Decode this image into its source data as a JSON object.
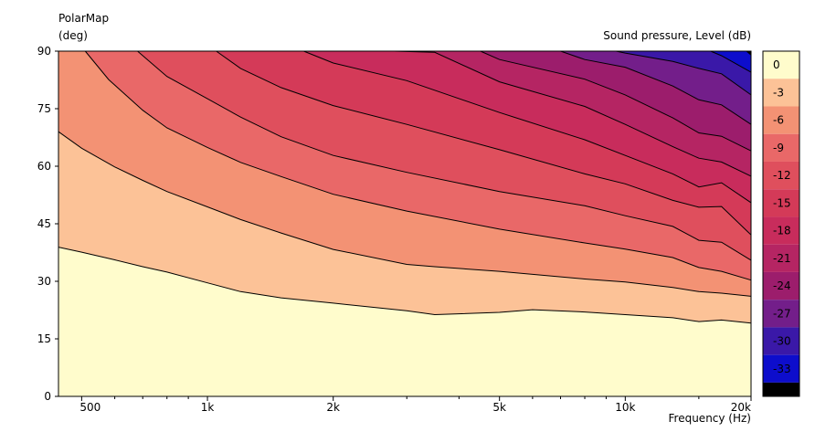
{
  "chart_data": {
    "type": "heatmap",
    "title": "PolarMap",
    "ylabel": "(deg)",
    "xlabel": "Frequency  (Hz)",
    "colorbar_label": "Sound pressure, Level  (dB)",
    "x_scale": "log",
    "xlim": [
      440,
      20000
    ],
    "ylim": [
      0,
      90
    ],
    "x_ticks": [
      {
        "value": 500,
        "label": "500"
      },
      {
        "value": 1000,
        "label": "1k"
      },
      {
        "value": 2000,
        "label": "2k"
      },
      {
        "value": 5000,
        "label": "5k"
      },
      {
        "value": 10000,
        "label": "10k"
      },
      {
        "value": 20000,
        "label": "20k"
      }
    ],
    "y_ticks": [
      {
        "value": 0,
        "label": "0"
      },
      {
        "value": 15,
        "label": "15"
      },
      {
        "value": 30,
        "label": "30"
      },
      {
        "value": 45,
        "label": "45"
      },
      {
        "value": 60,
        "label": "60"
      },
      {
        "value": 75,
        "label": "75"
      },
      {
        "value": 90,
        "label": "90"
      }
    ],
    "levels": [
      {
        "label": "0",
        "color": "#fffccc"
      },
      {
        "label": "-3",
        "color": "#fcc297"
      },
      {
        "label": "-6",
        "color": "#f39274"
      },
      {
        "label": "-9",
        "color": "#e96868"
      },
      {
        "label": "-12",
        "color": "#df4f5d"
      },
      {
        "label": "-15",
        "color": "#d43a58"
      },
      {
        "label": "-18",
        "color": "#c82c5c"
      },
      {
        "label": "-21",
        "color": "#b52563"
      },
      {
        "label": "-24",
        "color": "#9c1d6c"
      },
      {
        "label": "-27",
        "color": "#731e8a"
      },
      {
        "label": "-30",
        "color": "#3a18a8"
      },
      {
        "label": "-33",
        "color": "#0d0dcc"
      },
      {
        "label": "",
        "color": "#000000"
      }
    ],
    "contours": [
      {
        "level": "-3",
        "points": [
          [
            440,
            38.9
          ],
          [
            500,
            37.6
          ],
          [
            600,
            35.6
          ],
          [
            700,
            33.8
          ],
          [
            800,
            32.4
          ],
          [
            1000,
            29.6
          ],
          [
            1200,
            27.3
          ],
          [
            1500,
            25.7
          ],
          [
            2000,
            24.3
          ],
          [
            3000,
            22.3
          ],
          [
            3500,
            21.3
          ],
          [
            5000,
            21.9
          ],
          [
            6000,
            22.6
          ],
          [
            8000,
            22.0
          ],
          [
            10000,
            21.3
          ],
          [
            13000,
            20.5
          ],
          [
            15000,
            19.5
          ],
          [
            17000,
            19.9
          ],
          [
            20000,
            19.1
          ]
        ]
      },
      {
        "level": "-6",
        "points": [
          [
            440,
            69.0
          ],
          [
            500,
            64.7
          ],
          [
            600,
            59.8
          ],
          [
            700,
            56.3
          ],
          [
            800,
            53.4
          ],
          [
            1000,
            49.4
          ],
          [
            1200,
            46.1
          ],
          [
            1500,
            42.6
          ],
          [
            2000,
            38.3
          ],
          [
            3000,
            34.4
          ],
          [
            3500,
            33.8
          ],
          [
            5000,
            32.6
          ],
          [
            8000,
            30.6
          ],
          [
            10000,
            29.8
          ],
          [
            13000,
            28.4
          ],
          [
            15000,
            27.3
          ],
          [
            17000,
            26.9
          ],
          [
            20000,
            26.1
          ]
        ]
      },
      {
        "level": "-9",
        "points": [
          [
            510,
            90
          ],
          [
            580,
            82.6
          ],
          [
            700,
            74.6
          ],
          [
            800,
            70.0
          ],
          [
            1000,
            64.9
          ],
          [
            1200,
            61.0
          ],
          [
            1500,
            57.3
          ],
          [
            2000,
            52.7
          ],
          [
            3000,
            48.3
          ],
          [
            5000,
            43.6
          ],
          [
            8000,
            40.0
          ],
          [
            10000,
            38.4
          ],
          [
            13000,
            36.2
          ],
          [
            15000,
            33.6
          ],
          [
            17000,
            32.6
          ],
          [
            20000,
            30.3
          ]
        ]
      },
      {
        "level": "-12",
        "points": [
          [
            680,
            90
          ],
          [
            800,
            83.4
          ],
          [
            1000,
            77.6
          ],
          [
            1200,
            72.8
          ],
          [
            1500,
            67.7
          ],
          [
            2000,
            62.8
          ],
          [
            3000,
            58.4
          ],
          [
            5000,
            53.4
          ],
          [
            8000,
            49.7
          ],
          [
            10000,
            47.1
          ],
          [
            13000,
            44.3
          ],
          [
            15000,
            40.7
          ],
          [
            17000,
            40.2
          ],
          [
            20000,
            35.5
          ]
        ]
      },
      {
        "level": "-15",
        "points": [
          [
            1050,
            90
          ],
          [
            1200,
            85.5
          ],
          [
            1500,
            80.5
          ],
          [
            2000,
            75.8
          ],
          [
            3000,
            70.9
          ],
          [
            5000,
            64.3
          ],
          [
            8000,
            58.0
          ],
          [
            10000,
            55.4
          ],
          [
            13000,
            51.1
          ],
          [
            15000,
            49.3
          ],
          [
            17000,
            49.5
          ],
          [
            20000,
            42.1
          ]
        ]
      },
      {
        "level": "-18",
        "points": [
          [
            1700,
            90
          ],
          [
            2000,
            86.9
          ],
          [
            3000,
            82.3
          ],
          [
            5000,
            74.0
          ],
          [
            8000,
            66.9
          ],
          [
            10000,
            62.8
          ],
          [
            13000,
            58.0
          ],
          [
            15000,
            54.6
          ],
          [
            17000,
            55.7
          ],
          [
            20000,
            50.5
          ]
        ]
      },
      {
        "level": "-21",
        "points": [
          [
            2800,
            90
          ],
          [
            3500,
            89.7
          ],
          [
            5000,
            82.0
          ],
          [
            8000,
            75.6
          ],
          [
            10000,
            70.9
          ],
          [
            13000,
            65.1
          ],
          [
            15000,
            62.1
          ],
          [
            17000,
            61.1
          ],
          [
            20000,
            57.4
          ]
        ]
      },
      {
        "level": "-24",
        "points": [
          [
            4500,
            90
          ],
          [
            5000,
            87.8
          ],
          [
            8000,
            82.7
          ],
          [
            10000,
            78.6
          ],
          [
            13000,
            72.6
          ],
          [
            15000,
            68.7
          ],
          [
            17000,
            67.8
          ],
          [
            20000,
            64.0
          ]
        ]
      },
      {
        "level": "-27",
        "points": [
          [
            7000,
            90
          ],
          [
            8000,
            87.8
          ],
          [
            10000,
            85.8
          ],
          [
            13000,
            80.9
          ],
          [
            15000,
            77.3
          ],
          [
            17000,
            76.0
          ],
          [
            20000,
            70.9
          ]
        ]
      },
      {
        "level": "-30",
        "points": [
          [
            9500,
            90
          ],
          [
            10000,
            89.5
          ],
          [
            13000,
            87.3
          ],
          [
            15000,
            85.5
          ],
          [
            17000,
            84.1
          ],
          [
            20000,
            78.6
          ]
        ]
      },
      {
        "level": "-33",
        "points": [
          [
            16000,
            90
          ],
          [
            17000,
            88.8
          ],
          [
            20000,
            84.5
          ]
        ]
      },
      {
        "level": "",
        "points": [
          [
            19500,
            90
          ],
          [
            20000,
            89.0
          ]
        ]
      }
    ]
  }
}
